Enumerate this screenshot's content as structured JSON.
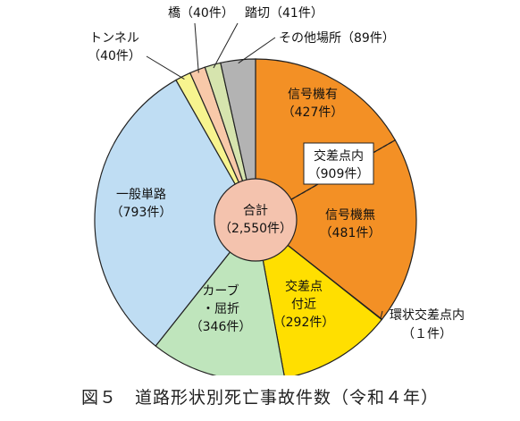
{
  "figure_caption": "図５　道路形状別死亡事故件数（令和４年）",
  "chart_data": {
    "type": "pie",
    "total_label": "合計",
    "total_value": "（2,550件）",
    "slices": [
      {
        "name": "信号機有",
        "value": 427,
        "value_label": "（427件）",
        "color": "#F39025"
      },
      {
        "name": "信号機無",
        "value": 481,
        "value_label": "（481件）",
        "color": "#F39025"
      },
      {
        "name": "環状交差点内",
        "value": 1,
        "value_label": "（１件）",
        "color": "#F39025"
      },
      {
        "name": "交差点付近",
        "value": 292,
        "value_label": "（292件）",
        "color": "#FFDF00"
      },
      {
        "name": "カーブ・屈折",
        "value": 346,
        "value_label": "（346件）",
        "color": "#BFE5BC"
      },
      {
        "name": "一般単路",
        "value": 793,
        "value_label": "（793件）",
        "color": "#BFDDF3"
      },
      {
        "name": "トンネル",
        "value": 40,
        "value_label": "（40件）",
        "color": "#F7F48F"
      },
      {
        "name": "橋",
        "value": 40,
        "value_label": "（40件）",
        "color": "#F8C9A9"
      },
      {
        "name": "踏切",
        "value": 41,
        "value_label": "（41件）",
        "color": "#D6E4AE"
      },
      {
        "name": "その他場所",
        "value": 89,
        "value_label": "（89件）",
        "color": "#B3B3B3"
      }
    ],
    "group": {
      "name": "交差点内",
      "value_label": "（909件）"
    },
    "center_color": "#F4C3AE",
    "inner_boundary_color": "#333333"
  }
}
